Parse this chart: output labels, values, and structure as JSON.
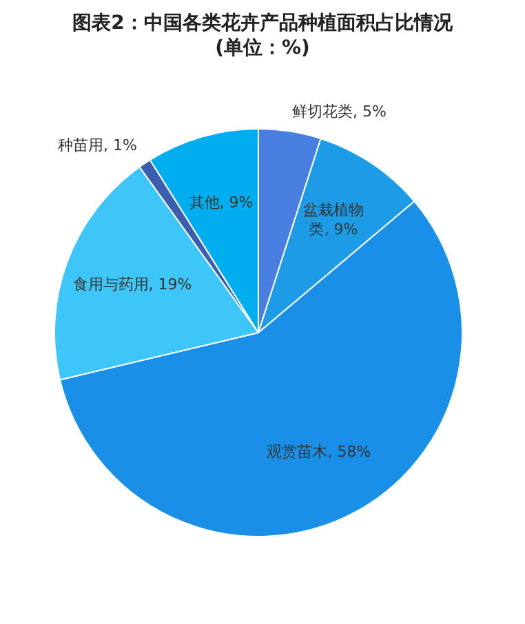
{
  "chart_data": {
    "type": "pie",
    "title": "图表2：中国各类花卉产品种植面积占比情况",
    "subtitle": "(单位：%)",
    "categories": [
      "鲜切花类",
      "盆栽植物类",
      "观赏苗木",
      "食用与药用",
      "种苗用",
      "其他"
    ],
    "values": [
      5,
      9,
      58,
      19,
      1,
      9
    ],
    "value_labels": [
      "5%",
      "9%",
      "58%",
      "19%",
      "1%",
      "9%"
    ],
    "colors": [
      "#4a7fe2",
      "#1d9be6",
      "#1a8fe8",
      "#3fc6f8",
      "#3b5fae",
      "#00aeef"
    ],
    "legend": false
  }
}
